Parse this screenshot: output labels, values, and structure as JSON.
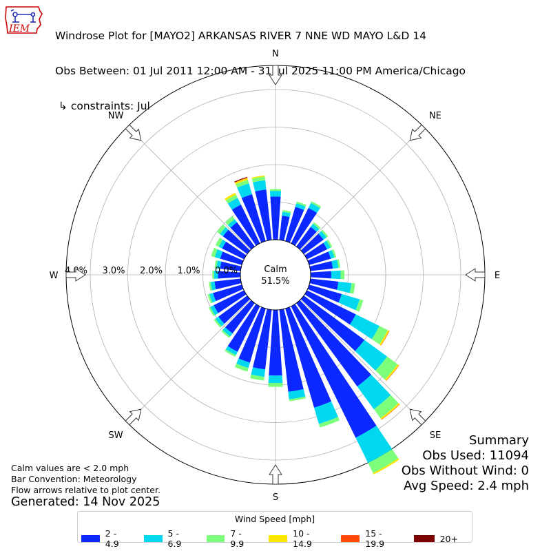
{
  "logo": {
    "text": "IEM",
    "colors": {
      "outline": "#cc0000",
      "text": "#cc0000",
      "figure": "#1f2bb5"
    }
  },
  "title": {
    "line1": "Windrose Plot for [MAYO2] ARKANSAS RIVER 7 NNE WD MAYO L&D 14",
    "line2": "Obs Between: 01 Jul 2011 12:00 AM - 31 Jul 2025 11:00 PM America/Chicago",
    "line3": " ↳ constraints: Jul"
  },
  "notes": {
    "calm": "Calm values are < 2.0 mph",
    "convention": "Bar Convention: Meteorology",
    "flow": "Flow arrows relative to plot center.",
    "generated": "Generated: 14 Nov 2025"
  },
  "summary": {
    "heading": "Summary",
    "obs_used": "Obs Used: 11094",
    "obs_without_wind": "Obs Without Wind: 0",
    "avg_speed": "Avg Speed: 2.4 mph"
  },
  "legend": {
    "title": "Wind Speed [mph]",
    "items": [
      {
        "label": "2 - 4.9",
        "color": "#0a28ff"
      },
      {
        "label": "5 - 6.9",
        "color": "#00d8f0"
      },
      {
        "label": "7 - 9.9",
        "color": "#7cff7a"
      },
      {
        "label": "10 - 14.9",
        "color": "#ffe600"
      },
      {
        "label": "15 - 19.9",
        "color": "#ff4a00"
      },
      {
        "label": "20+",
        "color": "#7f0000"
      }
    ]
  },
  "chart_data": {
    "type": "windrose",
    "direction_labels": [
      "N",
      "NE",
      "E",
      "SE",
      "S",
      "SW",
      "W",
      "NW"
    ],
    "radial_tick_labels": [
      "0.0%",
      "1.0%",
      "2.0%",
      "3.0%",
      "4.0%"
    ],
    "radial_ticks": [
      0,
      1,
      2,
      3,
      4
    ],
    "calm_label": "Calm",
    "calm_percent_label": "51.5%",
    "unit": "percent of observations",
    "directions_deg": [
      0,
      10,
      20,
      30,
      40,
      50,
      60,
      70,
      80,
      90,
      100,
      110,
      120,
      130,
      140,
      150,
      160,
      170,
      180,
      190,
      200,
      210,
      220,
      230,
      240,
      250,
      260,
      270,
      280,
      290,
      300,
      310,
      320,
      330,
      340,
      350
    ],
    "series": [
      {
        "name": "2 - 4.9",
        "color": "#0a28ff",
        "values": [
          1.15,
          0.65,
          0.95,
          1.05,
          0.65,
          0.65,
          0.6,
          0.6,
          0.6,
          0.55,
          0.75,
          0.9,
          1.45,
          2.0,
          2.75,
          3.9,
          2.75,
          2.2,
          1.75,
          1.6,
          1.5,
          1.35,
          1.0,
          0.95,
          0.9,
          0.8,
          0.7,
          0.6,
          0.55,
          0.6,
          0.65,
          0.8,
          0.8,
          1.15,
          1.3,
          1.35
        ]
      },
      {
        "name": "5 - 6.9",
        "color": "#00d8f0",
        "values": [
          0.15,
          0.1,
          0.1,
          0.15,
          0.1,
          0.1,
          0.1,
          0.1,
          0.15,
          0.25,
          0.35,
          0.5,
          0.7,
          0.75,
          0.75,
          0.75,
          0.45,
          0.2,
          0.2,
          0.2,
          0.15,
          0.1,
          0.1,
          0.1,
          0.1,
          0.1,
          0.1,
          0.1,
          0.1,
          0.15,
          0.1,
          0.1,
          0.1,
          0.2,
          0.3,
          0.25
        ]
      },
      {
        "name": "7 - 9.9",
        "color": "#7cff7a",
        "values": [
          0.05,
          0.05,
          0.05,
          0.05,
          0.05,
          0.05,
          0.05,
          0.05,
          0.05,
          0.1,
          0.1,
          0.1,
          0.25,
          0.35,
          0.3,
          0.3,
          0.1,
          0.05,
          0.1,
          0.1,
          0.1,
          0.05,
          0.05,
          0.05,
          0.05,
          0.05,
          0.05,
          0.05,
          0.05,
          0.1,
          0.1,
          0.1,
          0.1,
          0.1,
          0.1,
          0.1
        ]
      },
      {
        "name": "10 - 14.9",
        "color": "#ffe600",
        "values": [
          0,
          0,
          0,
          0,
          0,
          0,
          0,
          0,
          0,
          0,
          0,
          0,
          0.04,
          0.04,
          0.04,
          0.04,
          0,
          0,
          0,
          0,
          0,
          0,
          0,
          0,
          0,
          0,
          0,
          0,
          0,
          0,
          0,
          0,
          0,
          0.05,
          0.05,
          0.03
        ]
      },
      {
        "name": "15 - 19.9",
        "color": "#ff4a00",
        "values": [
          0,
          0,
          0,
          0,
          0,
          0,
          0,
          0,
          0,
          0,
          0,
          0,
          0.01,
          0.01,
          0.01,
          0,
          0,
          0,
          0,
          0,
          0,
          0,
          0,
          0,
          0,
          0,
          0,
          0,
          0,
          0,
          0,
          0,
          0,
          0,
          0.01,
          0
        ]
      },
      {
        "name": "20+",
        "color": "#7f0000",
        "values": [
          0,
          0,
          0,
          0,
          0,
          0,
          0,
          0,
          0,
          0,
          0,
          0,
          0,
          0,
          0,
          0,
          0,
          0,
          0,
          0,
          0,
          0,
          0,
          0,
          0,
          0,
          0,
          0,
          0,
          0,
          0,
          0,
          0,
          0,
          0.02,
          0
        ]
      }
    ]
  }
}
